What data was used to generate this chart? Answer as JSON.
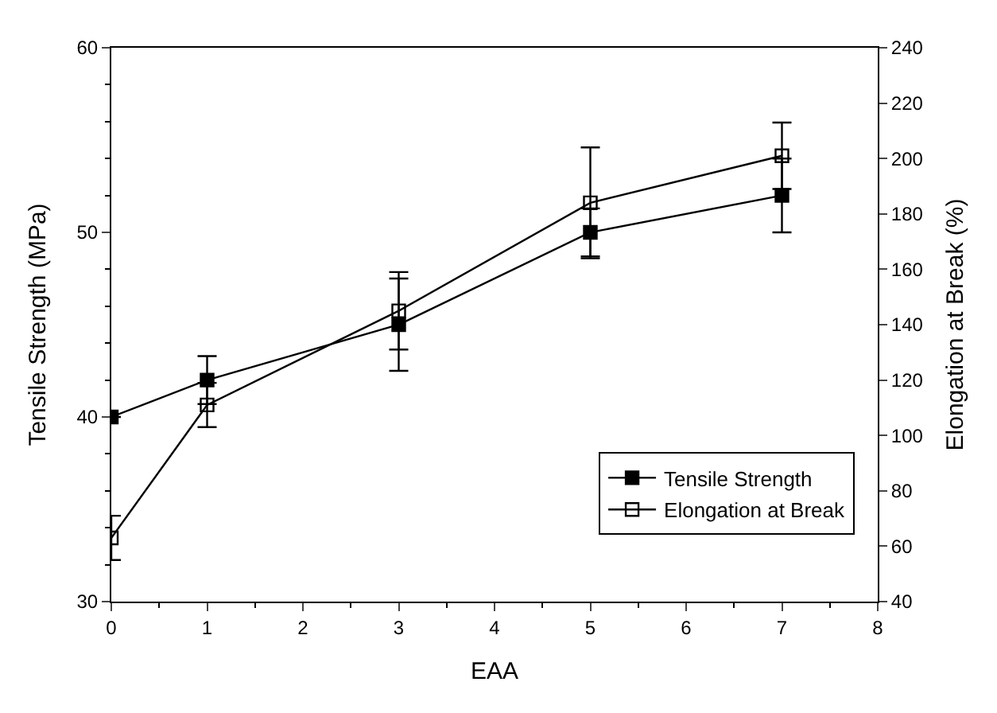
{
  "chart_data": {
    "type": "line",
    "xlabel": "EAA",
    "ylabel": "Tensile Strength (MPa)",
    "y2label": "Elongation at Break (%)",
    "x": [
      0,
      1,
      3,
      5,
      7
    ],
    "series": [
      {
        "name": "Tensile Strength",
        "color": "#000000",
        "values": [
          40,
          42,
          45,
          50,
          52
        ],
        "errors": [
          null,
          1.3,
          2.5,
          1.3,
          2
        ],
        "marker": "square"
      },
      {
        "name": "Elongation at Break",
        "color": "#000000",
        "values": [
          63,
          111,
          145,
          184,
          201
        ],
        "errors": [
          8,
          8,
          14,
          20,
          12
        ],
        "marker": "square-open",
        "axis": "y2"
      }
    ],
    "xlim": [
      0,
      8
    ],
    "xticks": [
      0,
      1,
      2,
      3,
      4,
      5,
      6,
      7,
      8
    ],
    "ylim": [
      30,
      60
    ],
    "yticks": [
      30,
      40,
      50,
      60
    ],
    "y2lim": [
      40,
      240
    ],
    "y2ticks": [
      40,
      60,
      80,
      100,
      120,
      140,
      160,
      180,
      200,
      220,
      240
    ],
    "legend": "bottom right",
    "line_style": "solid"
  }
}
